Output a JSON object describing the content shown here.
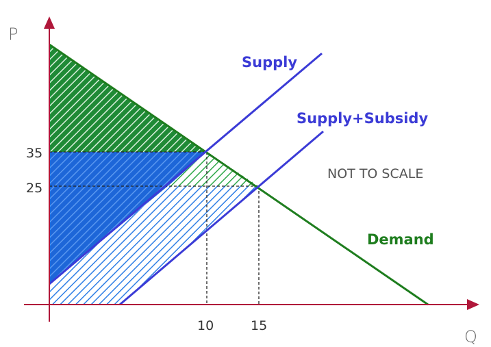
{
  "diagram": {
    "axis_labels": {
      "y": "P",
      "x": "Q"
    },
    "price_ticks": [
      "35",
      "25"
    ],
    "quantity_ticks": [
      "10",
      "15"
    ],
    "curves": {
      "supply": "Supply",
      "supply_subsidy": "Supply+Subsidy",
      "demand": "Demand"
    },
    "note": "NOT TO SCALE"
  },
  "colors": {
    "supply": "#3b3bd6",
    "demand": "#1e7d1e",
    "green_fill": "#1e9a3a",
    "blue_fill": "#1f6fe0",
    "blue_hatch": "#2a7fe0",
    "axis": "#b0173a"
  }
}
